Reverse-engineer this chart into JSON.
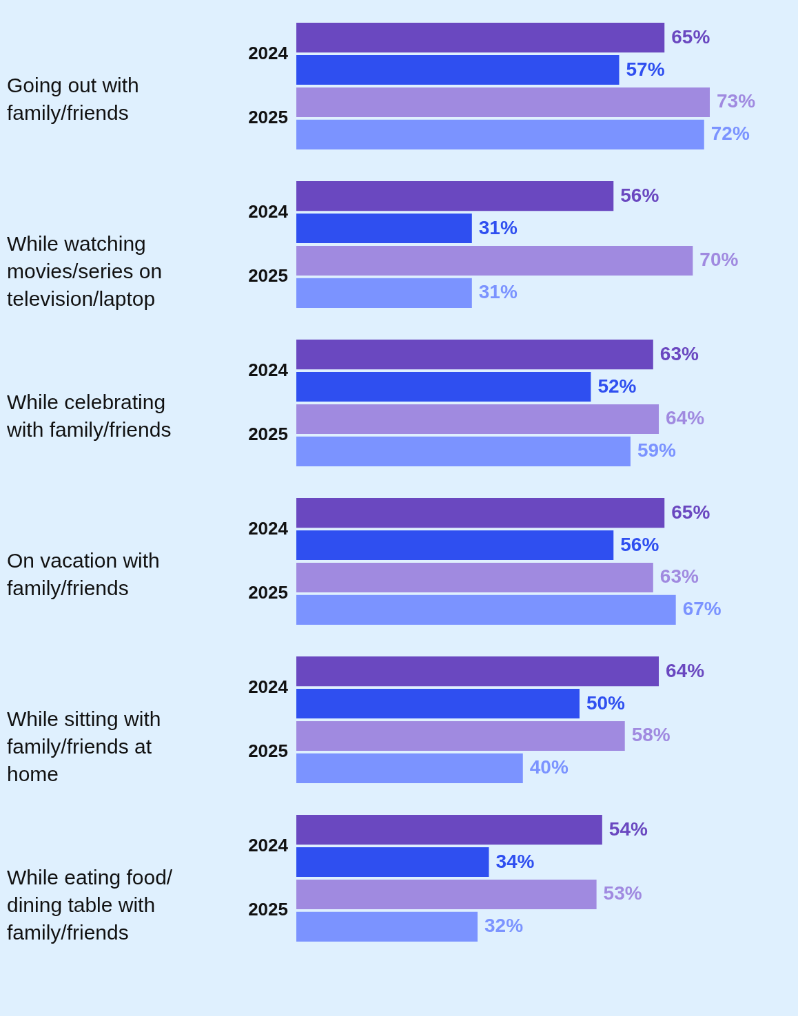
{
  "chart_data": {
    "type": "bar",
    "orientation": "horizontal",
    "categories": [
      "Going out with family/friends",
      "While watching movies/series on television/laptop",
      "While celebrating with family/friends",
      "On vacation with family/friends",
      "While sitting with family/friends at home",
      "While eating food/ dining table with family/friends"
    ],
    "tick_labels": "y",
    "series": [
      {
        "name": "2024",
        "color": "#6a48c0",
        "values": [
          65,
          56,
          63,
          65,
          64,
          54
        ],
        "value_labels": [
          "65%",
          "56%",
          "63%",
          "65%",
          "64%",
          "54%"
        ]
      },
      {
        "name": "2024",
        "color": "#2f4ff0",
        "values": [
          57,
          31,
          52,
          56,
          50,
          34
        ],
        "value_labels": [
          "57%",
          "31%",
          "52%",
          "56%",
          "50%",
          "34%"
        ]
      },
      {
        "name": "2025",
        "color": "#a08ae0",
        "values": [
          73,
          70,
          64,
          63,
          58,
          53
        ],
        "value_labels": [
          "73%",
          "70%",
          "64%",
          "63%",
          "58%",
          "53%"
        ]
      },
      {
        "name": "2025",
        "color": "#7b93ff",
        "values": [
          72,
          31,
          59,
          67,
          40,
          32
        ],
        "value_labels": [
          "72%",
          "31%",
          "59%",
          "67%",
          "40%",
          "32%"
        ]
      }
    ]
  }
}
